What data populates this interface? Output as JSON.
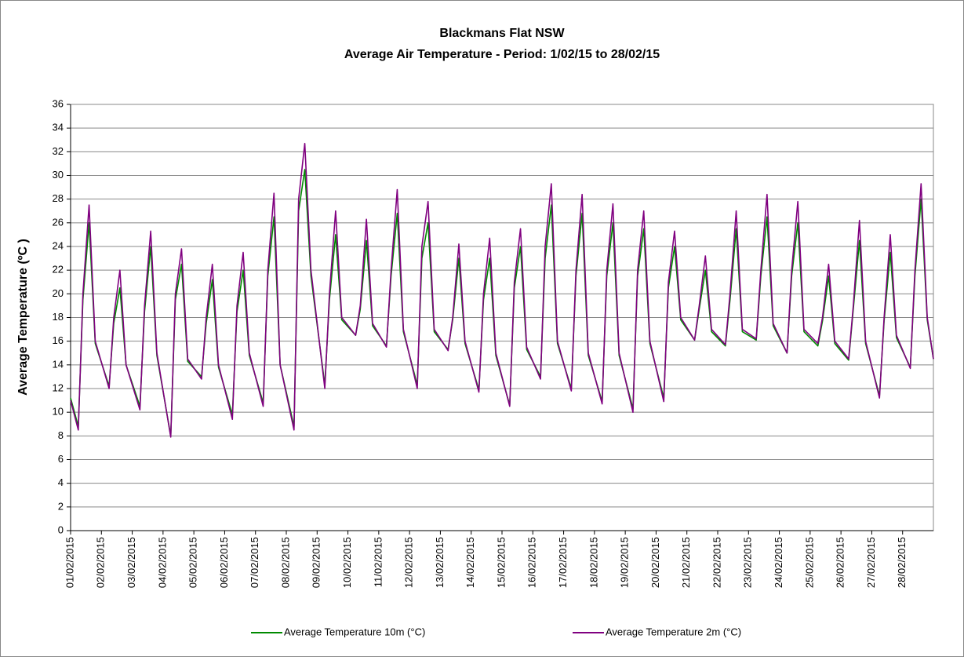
{
  "chart_data": {
    "type": "line",
    "title": "Blackmans Flat NSW",
    "subtitle": "Average Air Temperature - Period: 1/02/15 to 28/02/15",
    "y_label": "Average Temperature (ºC )",
    "xlim": [
      0,
      28
    ],
    "xticks": [
      {
        "value": 0,
        "label": "01/02/2015"
      },
      {
        "value": 1,
        "label": "02/02/2015"
      },
      {
        "value": 2,
        "label": "03/02/2015"
      },
      {
        "value": 3,
        "label": "04/02/2015"
      },
      {
        "value": 4,
        "label": "05/02/2015"
      },
      {
        "value": 5,
        "label": "06/02/2015"
      },
      {
        "value": 6,
        "label": "07/02/2015"
      },
      {
        "value": 7,
        "label": "08/02/2015"
      },
      {
        "value": 8,
        "label": "09/02/2015"
      },
      {
        "value": 9,
        "label": "10/02/2015"
      },
      {
        "value": 10,
        "label": "11/02/2015"
      },
      {
        "value": 11,
        "label": "12/02/2015"
      },
      {
        "value": 12,
        "label": "13/02/2015"
      },
      {
        "value": 13,
        "label": "14/02/2015"
      },
      {
        "value": 14,
        "label": "15/02/2015"
      },
      {
        "value": 15,
        "label": "16/02/2015"
      },
      {
        "value": 16,
        "label": "17/02/2015"
      },
      {
        "value": 17,
        "label": "18/02/2015"
      },
      {
        "value": 18,
        "label": "19/02/2015"
      },
      {
        "value": 19,
        "label": "20/02/2015"
      },
      {
        "value": 20,
        "label": "21/02/2015"
      },
      {
        "value": 21,
        "label": "22/02/2015"
      },
      {
        "value": 22,
        "label": "23/02/2015"
      },
      {
        "value": 23,
        "label": "24/02/2015"
      },
      {
        "value": 24,
        "label": "25/02/2015"
      },
      {
        "value": 25,
        "label": "26/02/2015"
      },
      {
        "value": 26,
        "label": "27/02/2015"
      },
      {
        "value": 27,
        "label": "28/02/2015"
      }
    ],
    "ylim": [
      0,
      36
    ],
    "yticks": [
      0,
      2,
      4,
      6,
      8,
      10,
      12,
      14,
      16,
      18,
      20,
      22,
      24,
      26,
      28,
      30,
      32,
      34,
      36
    ],
    "grid": true,
    "legend": "bottom",
    "x": [
      0,
      0.25,
      0.4,
      0.6,
      0.8,
      1.25,
      1.4,
      1.6,
      1.8,
      2.25,
      2.4,
      2.6,
      2.8,
      3.25,
      3.4,
      3.6,
      3.8,
      4.25,
      4.4,
      4.6,
      4.8,
      5.25,
      5.4,
      5.6,
      5.8,
      6.25,
      6.4,
      6.6,
      6.8,
      7.25,
      7.4,
      7.6,
      7.8,
      8.25,
      8.4,
      8.6,
      8.8,
      9.25,
      9.4,
      9.6,
      9.8,
      10.25,
      10.4,
      10.6,
      10.8,
      11.25,
      11.4,
      11.6,
      11.8,
      12.25,
      12.4,
      12.6,
      12.8,
      13.25,
      13.4,
      13.6,
      13.8,
      14.25,
      14.4,
      14.6,
      14.8,
      15.25,
      15.4,
      15.6,
      15.8,
      16.25,
      16.4,
      16.6,
      16.8,
      17.25,
      17.4,
      17.6,
      17.8,
      18.25,
      18.4,
      18.6,
      18.8,
      19.25,
      19.4,
      19.6,
      19.8,
      20.25,
      20.4,
      20.6,
      20.8,
      21.25,
      21.4,
      21.6,
      21.8,
      22.25,
      22.4,
      22.6,
      22.8,
      23.25,
      23.4,
      23.6,
      23.8,
      24.25,
      24.4,
      24.6,
      24.8,
      25.25,
      25.4,
      25.6,
      25.8,
      26.25,
      26.4,
      26.6,
      26.8,
      27.25,
      27.4,
      27.6,
      27.8,
      28
    ],
    "series": [
      {
        "name": "Average Temperature 10m (°C)",
        "color": "#008a00",
        "values": [
          11.2,
          8.8,
          19.5,
          26,
          15.8,
          12.2,
          17.5,
          20.5,
          14,
          10.5,
          18.5,
          24,
          14.8,
          8,
          19.5,
          22.5,
          14.3,
          13,
          17.5,
          21.2,
          13.8,
          9.8,
          18.5,
          22,
          14.8,
          10.8,
          21.5,
          26.5,
          14,
          8.8,
          27,
          30.5,
          21.5,
          12.3,
          19.5,
          25,
          17.8,
          16.5,
          18.7,
          24.5,
          17.3,
          15.6,
          21.5,
          26.8,
          16.8,
          12.3,
          23,
          26,
          16.8,
          15.3,
          17.8,
          23,
          15.8,
          11.9,
          19.5,
          23,
          14.8,
          10.6,
          20.5,
          24,
          15.3,
          13,
          23,
          27.5,
          15.8,
          12,
          21.5,
          26.8,
          14.8,
          10.9,
          21.5,
          26,
          14.8,
          10.3,
          21.5,
          25.5,
          15.8,
          11.2,
          20.5,
          24,
          17.8,
          16.1,
          18.7,
          22,
          16.8,
          15.6,
          19.5,
          25.5,
          16.8,
          16.1,
          21.5,
          26.5,
          17.3,
          15,
          21.5,
          26,
          16.8,
          15.6,
          17.7,
          21.5,
          15.8,
          14.4,
          18.7,
          24.5,
          15.8,
          11.4,
          17.7,
          23.5,
          16.3,
          13.8,
          21.5,
          28,
          17.8,
          14.5
        ]
      },
      {
        "name": "Average Temperature 2m (°C)",
        "color": "#800080",
        "values": [
          11,
          8.5,
          20,
          27.5,
          16,
          12,
          18,
          22,
          14,
          10.2,
          19,
          25.3,
          15,
          7.9,
          20,
          23.8,
          14.5,
          12.8,
          18,
          22.5,
          14,
          9.4,
          19,
          23.5,
          15,
          10.5,
          22,
          28.5,
          14,
          8.5,
          28,
          32.7,
          22,
          12,
          20,
          27,
          18,
          16.5,
          19,
          26.3,
          17.5,
          15.5,
          22,
          28.8,
          17,
          12,
          24,
          27.8,
          17,
          15.2,
          18,
          24.2,
          16,
          11.7,
          20,
          24.7,
          15,
          10.5,
          21,
          25.5,
          15.5,
          12.8,
          24,
          29.3,
          16,
          11.8,
          22,
          28.4,
          15,
          10.7,
          22,
          27.6,
          15,
          10,
          22,
          27,
          16,
          10.9,
          21,
          25.3,
          18,
          16.1,
          19,
          23.2,
          17,
          15.7,
          20,
          27,
          17,
          16.2,
          22,
          28.4,
          17.5,
          15,
          22,
          27.8,
          17,
          15.8,
          18,
          22.5,
          16,
          14.5,
          19,
          26.2,
          16,
          11.2,
          18,
          25,
          16.5,
          13.7,
          22,
          29.3,
          18,
          14.5
        ]
      }
    ]
  }
}
